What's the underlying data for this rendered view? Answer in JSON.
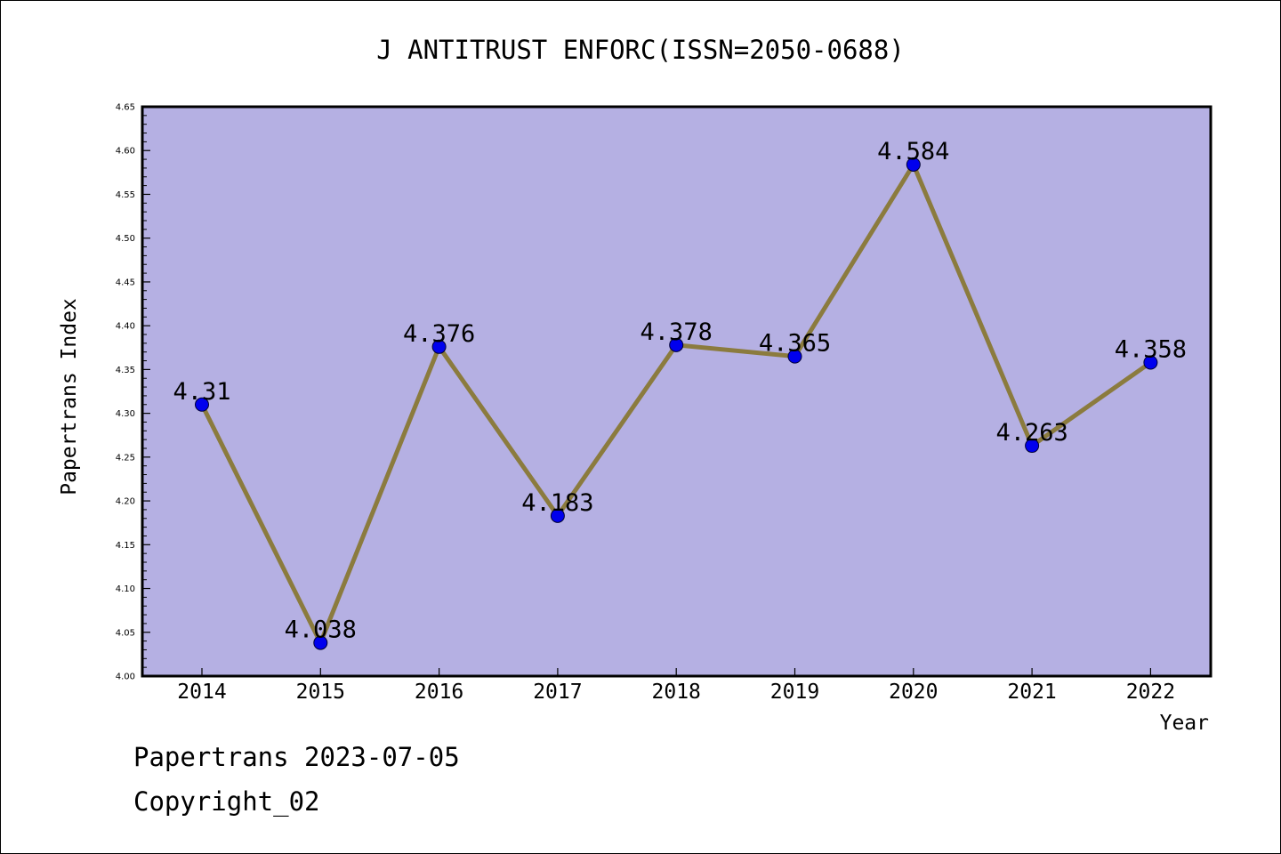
{
  "chart_data": {
    "type": "line",
    "title": "J ANTITRUST ENFORC(ISSN=2050-0688)",
    "xlabel": "Year",
    "ylabel": "Papertrans Index",
    "x": [
      "2014",
      "2015",
      "2016",
      "2017",
      "2018",
      "2019",
      "2020",
      "2021",
      "2022"
    ],
    "series": [
      {
        "values": [
          4.31,
          4.038,
          4.376,
          4.183,
          4.378,
          4.365,
          4.584,
          4.263,
          4.358
        ],
        "labels": [
          "4.31",
          "4.038",
          "4.376",
          "4.183",
          "4.378",
          "4.365",
          "4.584",
          "4.263",
          "4.358"
        ]
      }
    ],
    "ylim": [
      4.0,
      4.65
    ],
    "yticks": [
      "4.00",
      "4.05",
      "4.10",
      "4.15",
      "4.20",
      "4.25",
      "4.30",
      "4.35",
      "4.40",
      "4.45",
      "4.50",
      "4.55",
      "4.60",
      "4.65"
    ],
    "grid": false,
    "colors": {
      "plot_background": "#b5b0e3",
      "line": "#8b7b3e",
      "marker": "#0000ee"
    }
  },
  "footer": {
    "line1": "Papertrans 2023-07-05",
    "line2": "Copyright_02"
  }
}
